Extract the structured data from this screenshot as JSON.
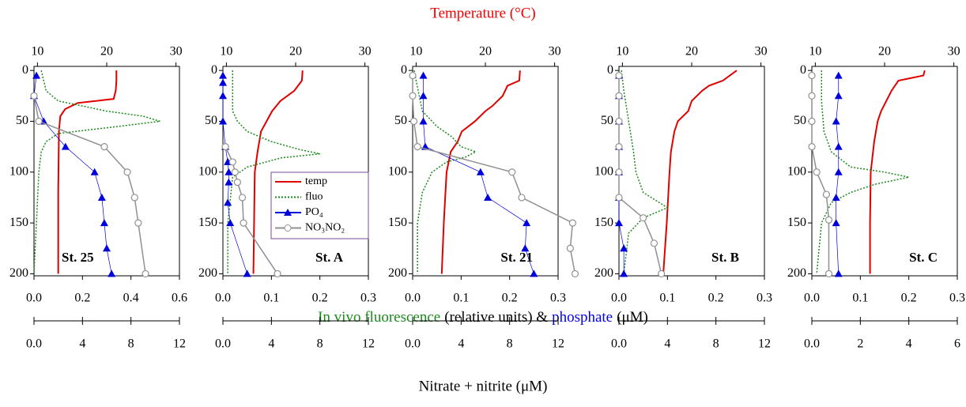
{
  "figure": {
    "top_label": "Temperature (°C)",
    "top_label_color": "#ee0000",
    "middle_label": [
      {
        "text": "In vivo fluorescence",
        "color": "#1a8a1a"
      },
      {
        "text": "(relative units) &",
        "color": "#000000"
      },
      {
        "text": "phosphate",
        "color": "#0000ee"
      },
      {
        "text": "(μM)",
        "color": "#000000"
      }
    ],
    "bottom_label": "Nitrate + nitrite (μM)",
    "legend": [
      {
        "name": "temp",
        "color": "#e00000",
        "dash": "solid",
        "marker": "none"
      },
      {
        "name": "fluo",
        "color": "#1a8a1a",
        "dash": "dotted",
        "marker": "none"
      },
      {
        "name": "PO₄",
        "color": "#0000dd",
        "dash": "solid",
        "marker": "triangle"
      },
      {
        "name": "NO₃NO₂",
        "color": "#909090",
        "dash": "solid",
        "marker": "circle"
      }
    ]
  },
  "chart_data": [
    {
      "type": "line",
      "title": "St. 25",
      "legend": false,
      "ylim": [
        -4,
        202
      ],
      "yticks": [
        0,
        50,
        100,
        150,
        200
      ],
      "xlim": [
        9.5,
        30.5
      ],
      "xticks": [
        10,
        20,
        30
      ],
      "x2lim": [
        0,
        0.6
      ],
      "x2ticks": [
        {
          "value": 0,
          "label": "0.0"
        },
        0.2,
        0.4,
        0.6
      ],
      "x3lim": [
        0,
        12
      ],
      "x3ticks": [
        {
          "value": 0,
          "label": "0.0"
        },
        4,
        8,
        12
      ],
      "series": [
        {
          "axis": "x",
          "depth": [
            0,
            10,
            20,
            28,
            32,
            38,
            45,
            60,
            120,
            200
          ],
          "values": [
            21.4,
            21.4,
            21.3,
            21.0,
            15.8,
            14.0,
            13.3,
            13.1,
            13.0,
            13.0
          ]
        },
        {
          "axis": "x2",
          "depth": [
            0,
            10,
            20,
            30,
            40,
            45,
            50,
            55,
            62,
            70,
            80,
            100,
            150,
            200
          ],
          "values": [
            0.03,
            0.04,
            0.05,
            0.1,
            0.3,
            0.45,
            0.52,
            0.35,
            0.1,
            0.05,
            0.03,
            0.02,
            0.01,
            0.0
          ]
        },
        {
          "axis": "x2",
          "depth": [
            5,
            25,
            50,
            75,
            100,
            125,
            150,
            175,
            200
          ],
          "values": [
            0.01,
            0.0,
            0.04,
            0.13,
            0.25,
            0.28,
            0.29,
            0.3,
            0.32
          ]
        },
        {
          "axis": "x3",
          "depth": [
            25,
            50,
            75,
            100,
            125,
            150,
            200
          ],
          "values": [
            0.0,
            0.4,
            5.8,
            7.7,
            8.3,
            8.6,
            9.2
          ]
        }
      ]
    },
    {
      "type": "line",
      "title": "St. A",
      "legend": true,
      "ylim": [
        -4,
        202
      ],
      "yticks": [
        0,
        50,
        100,
        150,
        200
      ],
      "xlim": [
        9.5,
        30.5
      ],
      "xticks": [
        10,
        20,
        30
      ],
      "x2lim": [
        0,
        0.3
      ],
      "x2ticks": [
        {
          "value": 0,
          "label": "0.0"
        },
        0.1,
        0.2,
        0.3
      ],
      "x3lim": [
        0,
        12
      ],
      "x3ticks": [
        {
          "value": 0,
          "label": "0.0"
        },
        4,
        8,
        12
      ],
      "series": [
        {
          "axis": "x",
          "depth": [
            0,
            10,
            20,
            30,
            40,
            50,
            60,
            80,
            100,
            150,
            200
          ],
          "values": [
            21.0,
            20.9,
            19.8,
            17.8,
            16.6,
            15.8,
            15.0,
            14.5,
            14.1,
            14.0,
            13.9
          ]
        },
        {
          "axis": "x2",
          "depth": [
            0,
            20,
            40,
            50,
            60,
            70,
            78,
            82,
            86,
            95,
            105,
            150,
            200
          ],
          "values": [
            0.02,
            0.02,
            0.02,
            0.03,
            0.05,
            0.1,
            0.16,
            0.2,
            0.12,
            0.05,
            0.02,
            0.01,
            0.01
          ]
        },
        {
          "axis": "x2",
          "depth": [
            5,
            12,
            25,
            50,
            75,
            90,
            100,
            110,
            130,
            150,
            200
          ],
          "values": [
            0.0,
            0.0,
            0.0,
            0.0,
            0.005,
            0.01,
            0.012,
            0.012,
            0.01,
            0.015,
            0.05
          ]
        },
        {
          "axis": "x3",
          "depth": [
            75,
            90,
            100,
            110,
            125,
            150,
            200
          ],
          "values": [
            0.2,
            0.8,
            1.0,
            1.2,
            1.6,
            1.7,
            4.5
          ]
        }
      ]
    },
    {
      "type": "line",
      "title": "St. 21",
      "legend": false,
      "ylim": [
        -4,
        202
      ],
      "yticks": [
        0,
        50,
        100,
        150,
        200
      ],
      "xlim": [
        9.5,
        30.5
      ],
      "xticks": [
        10,
        20,
        30
      ],
      "x2lim": [
        0,
        0.3
      ],
      "x2ticks": [
        {
          "value": 0,
          "label": "0.0"
        },
        0.1,
        0.2,
        0.3
      ],
      "x3lim": [
        0,
        12
      ],
      "x3ticks": [
        {
          "value": 0,
          "label": "0.0"
        },
        4,
        8,
        12
      ],
      "series": [
        {
          "axis": "x",
          "depth": [
            0,
            10,
            15,
            25,
            35,
            40,
            50,
            60,
            70,
            80,
            100,
            150,
            200
          ],
          "values": [
            25.0,
            24.9,
            23.2,
            22.5,
            21.0,
            20.0,
            18.5,
            16.6,
            16.0,
            15.0,
            14.4,
            14.0,
            13.7
          ]
        },
        {
          "axis": "x2",
          "depth": [
            0,
            40,
            55,
            65,
            75,
            80,
            85,
            90,
            100,
            120,
            150,
            200
          ],
          "values": [
            0.003,
            0.02,
            0.05,
            0.08,
            0.1,
            0.13,
            0.11,
            0.07,
            0.04,
            0.02,
            0.01,
            0.01
          ]
        },
        {
          "axis": "x2",
          "depth": [
            5,
            25,
            50,
            75,
            100,
            125,
            150,
            175,
            200
          ],
          "values": [
            0.022,
            0.022,
            0.022,
            0.026,
            0.14,
            0.155,
            0.235,
            0.232,
            0.25
          ]
        },
        {
          "axis": "x3",
          "depth": [
            5,
            25,
            50,
            75,
            100,
            125,
            150,
            175,
            200
          ],
          "values": [
            0.0,
            0.0,
            0.1,
            0.4,
            8.2,
            9.0,
            13.2,
            13.0,
            13.4
          ]
        }
      ]
    },
    {
      "type": "line",
      "title": "St. B",
      "legend": false,
      "ylim": [
        -4,
        202
      ],
      "yticks": [
        0,
        50,
        100,
        150,
        200
      ],
      "xlim": [
        9.5,
        30.5
      ],
      "xticks": [
        10,
        20,
        30
      ],
      "x2lim": [
        0,
        0.3
      ],
      "x2ticks": [
        {
          "value": 0,
          "label": "0.0"
        },
        0.1,
        0.2,
        0.3
      ],
      "x3lim": [
        0,
        12
      ],
      "x3ticks": [
        {
          "value": 0,
          "label": "0.0"
        },
        4,
        8,
        12
      ],
      "series": [
        {
          "axis": "x",
          "depth": [
            0,
            5,
            10,
            15,
            20,
            30,
            40,
            50,
            60,
            80,
            100,
            150,
            200
          ],
          "values": [
            26.5,
            25.5,
            24.5,
            22.5,
            21.5,
            20.0,
            19.5,
            18.0,
            17.5,
            17.0,
            16.8,
            16.4,
            15.9
          ]
        },
        {
          "axis": "x2",
          "depth": [
            0,
            20,
            50,
            80,
            100,
            120,
            135,
            145,
            160,
            200
          ],
          "values": [
            0.005,
            0.01,
            0.02,
            0.03,
            0.035,
            0.05,
            0.1,
            0.05,
            0.02,
            0.01
          ]
        },
        {
          "axis": "x2",
          "depth": [
            5,
            25,
            50,
            75,
            100,
            125,
            150,
            175,
            200
          ],
          "values": [
            0,
            0,
            0,
            0,
            0,
            0,
            0,
            0.01,
            0.01
          ]
        },
        {
          "axis": "x3",
          "depth": [
            5,
            25,
            50,
            75,
            100,
            125,
            145,
            170,
            200
          ],
          "values": [
            0,
            0,
            0,
            0,
            0,
            0,
            2.0,
            2.9,
            3.5
          ]
        }
      ]
    },
    {
      "type": "line",
      "title": "St. C",
      "legend": false,
      "ylim": [
        -4,
        202
      ],
      "yticks": [
        0,
        50,
        100,
        150,
        200
      ],
      "xlim": [
        9.5,
        30.5
      ],
      "xticks": [
        10,
        20,
        30
      ],
      "x2lim": [
        0,
        0.3
      ],
      "x2ticks": [
        {
          "value": 0,
          "label": "0.0"
        },
        0.1,
        0.2,
        0.3
      ],
      "x3lim": [
        0,
        6
      ],
      "x3ticks": [
        {
          "value": 0,
          "label": "0.0"
        },
        2,
        4,
        6
      ],
      "series": [
        {
          "axis": "x",
          "depth": [
            0,
            5,
            10,
            20,
            40,
            50,
            70,
            100,
            150,
            200
          ],
          "values": [
            25.8,
            25.6,
            22.0,
            21.0,
            19.5,
            19.0,
            18.5,
            18.0,
            17.9,
            17.9
          ]
        },
        {
          "axis": "x2",
          "depth": [
            0,
            30,
            60,
            80,
            95,
            100,
            105,
            112,
            120,
            130,
            150,
            200
          ],
          "values": [
            0.02,
            0.02,
            0.025,
            0.04,
            0.08,
            0.15,
            0.2,
            0.13,
            0.08,
            0.04,
            0.02,
            0.01
          ]
        },
        {
          "axis": "x2",
          "depth": [
            5,
            25,
            50,
            75,
            100,
            125,
            150,
            200
          ],
          "values": [
            0.055,
            0.055,
            0.05,
            0.055,
            0.055,
            0.05,
            0.05,
            0.055
          ]
        },
        {
          "axis": "x3",
          "depth": [
            5,
            25,
            50,
            75,
            100,
            122,
            147,
            200
          ],
          "values": [
            0,
            0,
            0,
            0,
            0.2,
            0.6,
            0.7,
            0.7
          ]
        }
      ]
    }
  ]
}
